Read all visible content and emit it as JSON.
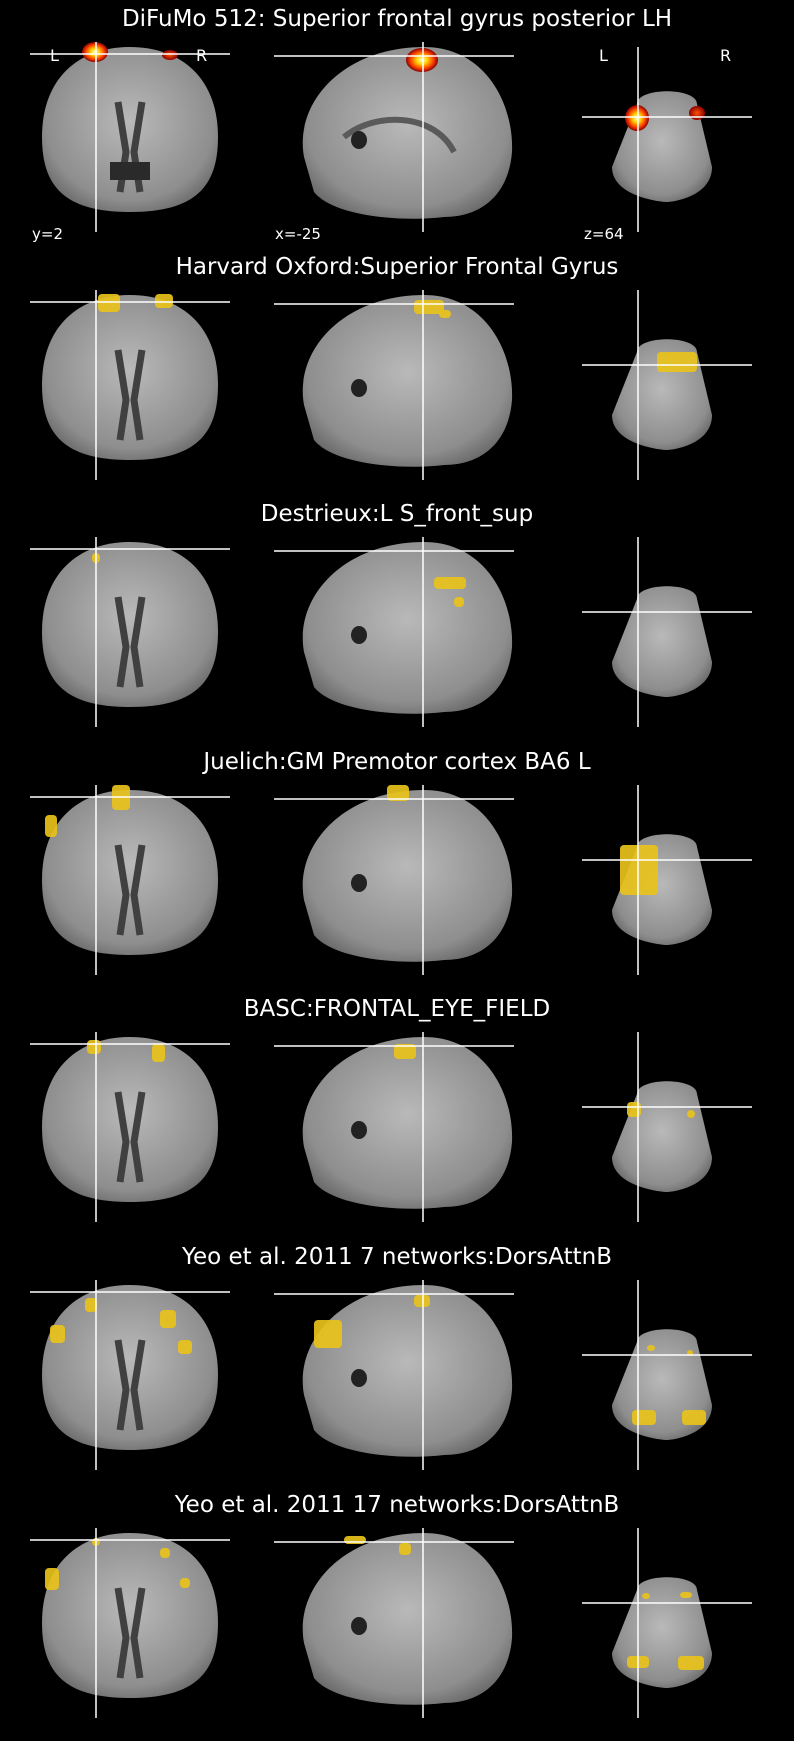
{
  "colors": {
    "background": "#000000",
    "crosshair": "#ffffff",
    "atlas_overlay": "#e8c21a",
    "activation_low": "#8b0000",
    "activation_mid": "#ff4500",
    "activation_high": "#ffffc8"
  },
  "orientation": {
    "left": "L",
    "right": "R"
  },
  "coordinates": {
    "coronal": "y=2",
    "sagittal": "x=-25",
    "axial": "z=64"
  },
  "panels": [
    {
      "title": "DiFuMo 512: Superior frontal gyrus posterior LH",
      "overlay": "activation-heat"
    },
    {
      "title": "Harvard Oxford:Superior Frontal Gyrus",
      "overlay": "atlas-region"
    },
    {
      "title": "Destrieux:L S_front_sup",
      "overlay": "atlas-region"
    },
    {
      "title": "Juelich:GM Premotor cortex BA6 L",
      "overlay": "atlas-region"
    },
    {
      "title": "BASC:FRONTAL_EYE_FIELD",
      "overlay": "atlas-region"
    },
    {
      "title": "Yeo et al. 2011 7 networks:DorsAttnB",
      "overlay": "atlas-region"
    },
    {
      "title": "Yeo et al. 2011 17 networks:DorsAttnB",
      "overlay": "atlas-region"
    }
  ]
}
